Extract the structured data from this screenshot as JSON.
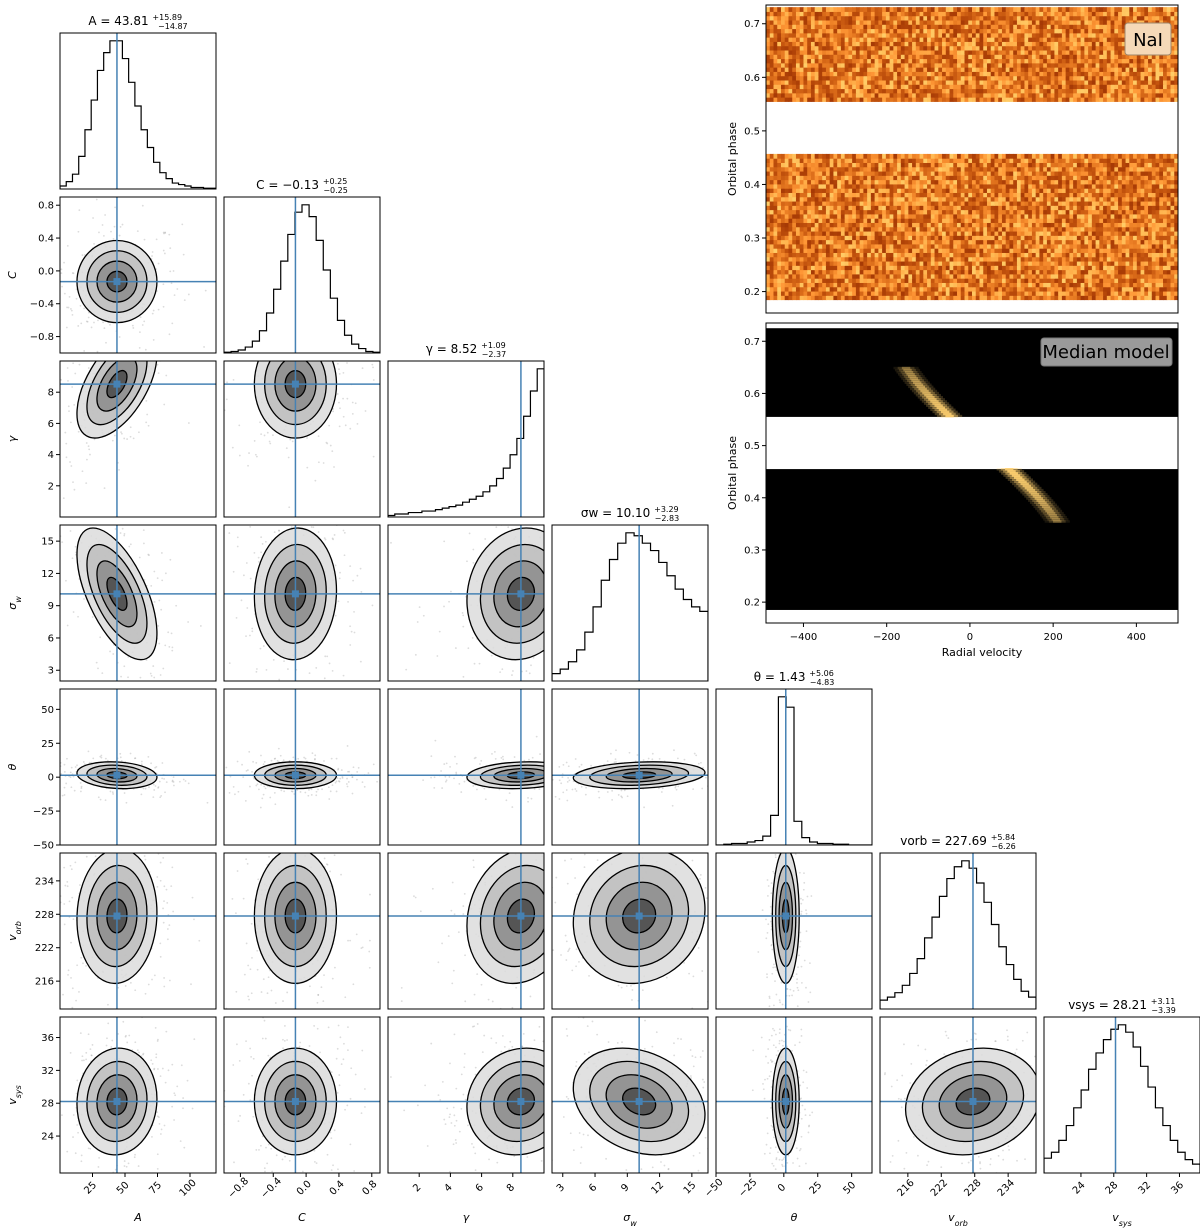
{
  "colors": {
    "truth_line": "#4682b4",
    "frame": "#000000",
    "nai_low": "#5a1000",
    "nai_high": "#ffd080",
    "model_peak": "#ffd070",
    "label_box_nai": "#f5d9b8",
    "label_box_model": "#9a9a9a"
  },
  "chart_data": [
    {
      "type": "corner",
      "parameters": [
        {
          "symbol": "A",
          "label": "A",
          "median": 43.81,
          "err_plus": "15.89",
          "err_minus": "14.87",
          "title": "A = 43.81",
          "range": [
            0,
            120
          ],
          "ticks": [
            25,
            50,
            75,
            100
          ],
          "tick_labels": [
            "25",
            "50",
            "75",
            "100"
          ],
          "histogram": [
            0.02,
            0.05,
            0.1,
            0.22,
            0.4,
            0.6,
            0.8,
            0.92,
            1.0,
            1.0,
            0.88,
            0.72,
            0.56,
            0.4,
            0.28,
            0.18,
            0.11,
            0.07,
            0.04,
            0.03,
            0.02,
            0.01,
            0.01,
            0.005,
            0.005
          ]
        },
        {
          "symbol": "C",
          "label": "C",
          "median": -0.13,
          "err_plus": "0.25",
          "err_minus": "0.25",
          "title": "C = −0.13",
          "range": [
            -1.0,
            0.9
          ],
          "ticks": [
            -0.8,
            -0.4,
            0.0,
            0.4,
            0.8
          ],
          "tick_labels": [
            "−0.8",
            "−0.4",
            "0.0",
            "0.4",
            "0.8"
          ],
          "histogram": [
            0.005,
            0.01,
            0.02,
            0.04,
            0.08,
            0.15,
            0.27,
            0.43,
            0.62,
            0.8,
            0.95,
            1.0,
            0.92,
            0.76,
            0.56,
            0.37,
            0.22,
            0.12,
            0.06,
            0.03,
            0.01,
            0.005
          ]
        },
        {
          "symbol": "γ",
          "label": "γ",
          "median": 8.52,
          "err_plus": "1.09",
          "err_minus": "2.37",
          "title": "γ = 8.52",
          "range": [
            0,
            10
          ],
          "ticks": [
            2,
            4,
            6,
            8
          ],
          "tick_labels": [
            "2",
            "4",
            "6",
            "8"
          ],
          "histogram": [
            0.01,
            0.02,
            0.02,
            0.03,
            0.03,
            0.04,
            0.04,
            0.05,
            0.06,
            0.07,
            0.08,
            0.1,
            0.12,
            0.14,
            0.17,
            0.21,
            0.26,
            0.33,
            0.42,
            0.53,
            0.68,
            0.85,
            1.0
          ]
        },
        {
          "symbol": "σw",
          "label": "σ_w",
          "median": 10.1,
          "err_plus": "3.29",
          "err_minus": "2.83",
          "title": "σw = 10.10",
          "range": [
            2,
            16.5
          ],
          "ticks": [
            3,
            6,
            9,
            12,
            15
          ],
          "tick_labels": [
            "3",
            "6",
            "9",
            "12",
            "15"
          ],
          "histogram": [
            0.05,
            0.08,
            0.13,
            0.21,
            0.33,
            0.5,
            0.68,
            0.82,
            0.93,
            1.0,
            0.98,
            0.93,
            0.88,
            0.8,
            0.71,
            0.62,
            0.55,
            0.5,
            0.47
          ]
        },
        {
          "symbol": "θ",
          "label": "θ",
          "median": 1.43,
          "err_plus": "5.06",
          "err_minus": "4.83",
          "title": "θ = 1.43",
          "range": [
            -50,
            65
          ],
          "ticks": [
            -50,
            -25,
            0,
            25,
            50
          ],
          "tick_labels": [
            "−50",
            "−25",
            "0",
            "25",
            "50"
          ],
          "histogram": [
            0.0,
            0.005,
            0.01,
            0.01,
            0.02,
            0.03,
            0.06,
            0.2,
            1.0,
            0.93,
            0.16,
            0.05,
            0.02,
            0.01,
            0.01,
            0.005,
            0.005,
            0.0,
            0.0,
            0.0
          ]
        },
        {
          "symbol": "vorb",
          "label": "v_orb",
          "median": 227.69,
          "err_plus": "5.84",
          "err_minus": "6.26",
          "title": "vorb = 227.69",
          "range": [
            211,
            239
          ],
          "ticks": [
            216,
            222,
            228,
            234
          ],
          "tick_labels": [
            "216",
            "222",
            "228",
            "234"
          ],
          "histogram": [
            0.06,
            0.08,
            0.11,
            0.16,
            0.24,
            0.34,
            0.48,
            0.62,
            0.76,
            0.88,
            0.96,
            1.0,
            0.95,
            0.85,
            0.72,
            0.57,
            0.42,
            0.3,
            0.2,
            0.12,
            0.08
          ]
        },
        {
          "symbol": "vsys",
          "label": "v_sys",
          "median": 28.21,
          "err_plus": "3.11",
          "err_minus": "3.39",
          "title": "vsys = 28.21",
          "range": [
            19.5,
            38.5
          ],
          "ticks": [
            24,
            28,
            32,
            36
          ],
          "tick_labels": [
            "24",
            "28",
            "32",
            "36"
          ],
          "histogram": [
            0.1,
            0.14,
            0.22,
            0.32,
            0.44,
            0.56,
            0.7,
            0.81,
            0.9,
            0.97,
            1.0,
            0.95,
            0.85,
            0.72,
            0.58,
            0.44,
            0.32,
            0.22,
            0.14,
            0.09,
            0.06
          ]
        }
      ],
      "correlations": {
        "1-0": 0.0,
        "2-0": 0.55,
        "2-1": 0.0,
        "3-0": -0.6,
        "3-1": 0.05,
        "3-2": 0.1,
        "4-0": -0.15,
        "4-1": 0.0,
        "4-2": 0.15,
        "4-3": 0.2,
        "5-0": 0.05,
        "5-1": 0.0,
        "5-2": 0.15,
        "5-3": 0.1,
        "5-4": 0.0,
        "6-0": 0.05,
        "6-1": 0.0,
        "6-2": 0.1,
        "6-3": -0.25,
        "6-4": 0.0,
        "6-5": 0.15
      }
    },
    {
      "type": "heatmap",
      "name": "data",
      "label_box": "NaI",
      "ylabel": "Orbital phase",
      "x_range": [
        -490,
        500
      ],
      "y_range": [
        0.16,
        0.735
      ],
      "gap": [
        0.455,
        0.555
      ],
      "data_phase": [
        0.185,
        0.725
      ],
      "yticks": [
        0.2,
        0.3,
        0.4,
        0.5,
        0.6,
        0.7
      ],
      "ytick_labels": [
        "0.2",
        "0.3",
        "0.4",
        "0.5",
        "0.6",
        "0.7"
      ]
    },
    {
      "type": "heatmap",
      "name": "model",
      "label_box": "Median model",
      "xlabel": "Radial velocity",
      "ylabel": "Orbital phase",
      "x_range": [
        -490,
        500
      ],
      "y_range": [
        0.16,
        0.735
      ],
      "gap": [
        0.455,
        0.555
      ],
      "data_phase": [
        0.185,
        0.725
      ],
      "xticks": [
        -400,
        -200,
        0,
        200,
        400
      ],
      "xtick_labels": [
        "−400",
        "−200",
        "0",
        "200",
        "400"
      ],
      "yticks": [
        0.2,
        0.3,
        0.4,
        0.5,
        0.6,
        0.7
      ],
      "ytick_labels": [
        "0.2",
        "0.3",
        "0.4",
        "0.5",
        "0.6",
        "0.7"
      ],
      "signal": {
        "v_orb": 227.69,
        "v_sys": 28.21,
        "width": 10.1
      }
    }
  ]
}
